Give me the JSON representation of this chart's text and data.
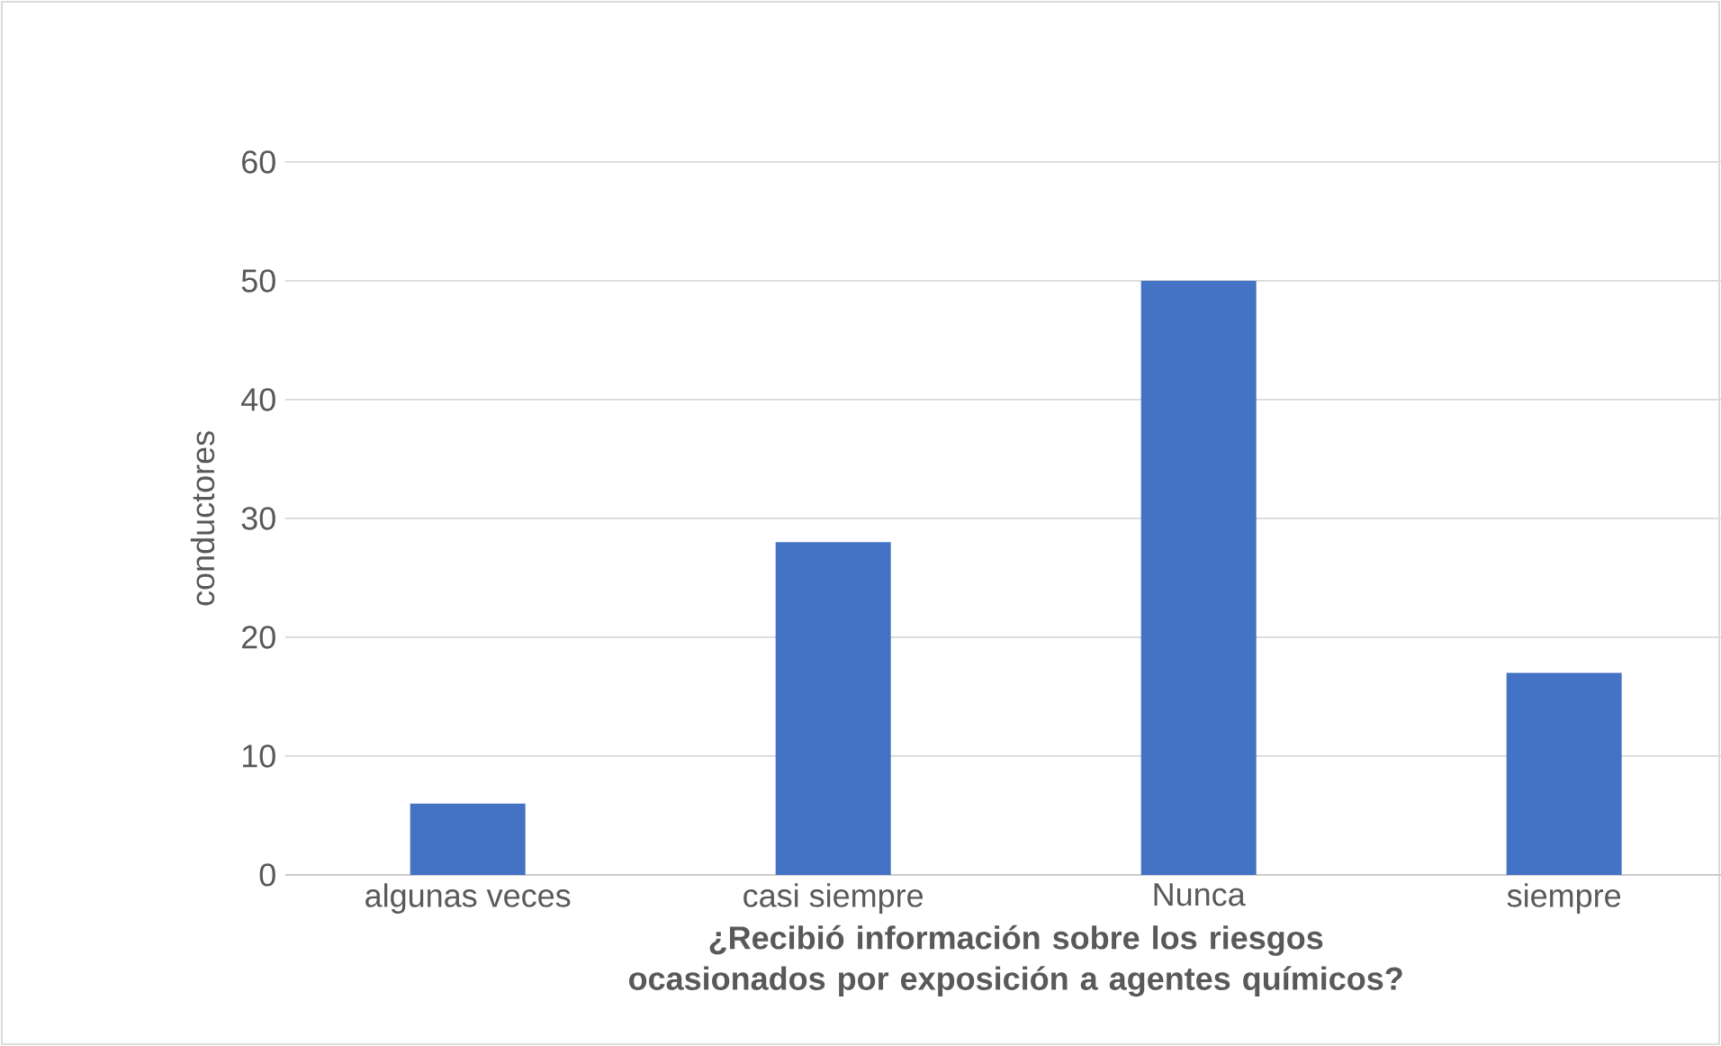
{
  "chart_data": {
    "type": "bar",
    "xlabel": "¿Recibió información sobre los riesgos ocasionados por exposición a agentes químicos?",
    "ylabel": "conductores",
    "categories": [
      "algunas veces",
      "casi siempre",
      "Nunca",
      "siempre"
    ],
    "values": [
      6,
      28,
      50,
      17
    ],
    "color": "#4472c4",
    "ylim": [
      0,
      60
    ],
    "yticks": [
      0,
      10,
      20,
      30,
      40,
      50,
      60
    ],
    "grid": "y"
  }
}
